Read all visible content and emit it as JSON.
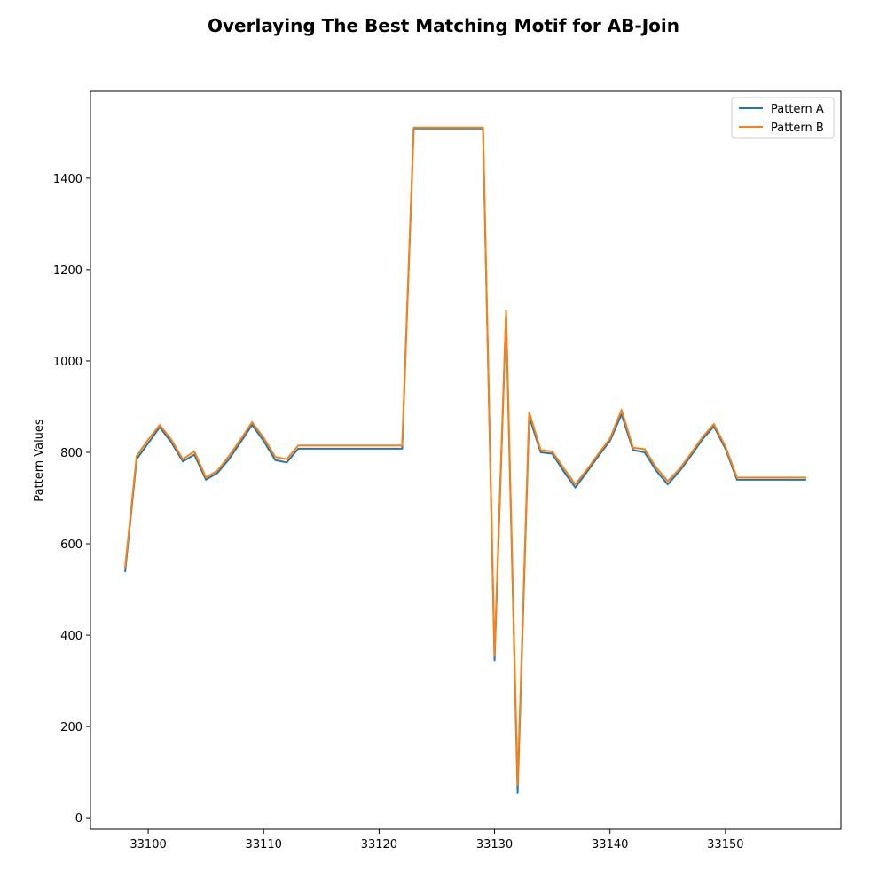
{
  "chart_data": {
    "type": "line",
    "title": "Overlaying The Best Matching Motif for AB-Join",
    "xlabel": "",
    "ylabel": "Pattern Values",
    "xlim": [
      33095,
      33160
    ],
    "ylim": [
      -25,
      1590
    ],
    "xticks": [
      33100,
      33110,
      33120,
      33130,
      33140,
      33150
    ],
    "yticks": [
      0,
      200,
      400,
      600,
      800,
      1000,
      1200,
      1400
    ],
    "grid": false,
    "legend_position": "top-right",
    "x": [
      33098,
      33099,
      33100,
      33101,
      33102,
      33103,
      33104,
      33105,
      33106,
      33107,
      33108,
      33109,
      33110,
      33111,
      33112,
      33113,
      33114,
      33115,
      33116,
      33117,
      33118,
      33119,
      33120,
      33121,
      33122,
      33123,
      33124,
      33125,
      33126,
      33127,
      33128,
      33129,
      33130,
      33131,
      33132,
      33133,
      33134,
      33135,
      33136,
      33137,
      33138,
      33139,
      33140,
      33141,
      33142,
      33143,
      33144,
      33145,
      33146,
      33147,
      33148,
      33149,
      33150,
      33151,
      33152,
      33153,
      33154,
      33155,
      33156,
      33157
    ],
    "series": [
      {
        "name": "Pattern A",
        "color": "#1f77b4",
        "values": [
          538,
          785,
          820,
          855,
          822,
          780,
          795,
          740,
          755,
          785,
          822,
          860,
          825,
          783,
          778,
          808,
          808,
          808,
          808,
          808,
          808,
          808,
          808,
          808,
          808,
          1509,
          1509,
          1509,
          1509,
          1509,
          1509,
          1509,
          345,
          1105,
          55,
          878,
          800,
          797,
          758,
          723,
          757,
          792,
          825,
          883,
          805,
          800,
          760,
          730,
          758,
          792,
          828,
          857,
          808,
          740,
          740,
          740,
          740,
          740,
          740,
          740
        ]
      },
      {
        "name": "Pattern B",
        "color": "#ff7f0e",
        "values": [
          548,
          792,
          828,
          860,
          828,
          785,
          802,
          745,
          760,
          792,
          828,
          866,
          832,
          790,
          785,
          815,
          815,
          815,
          815,
          815,
          815,
          815,
          815,
          815,
          815,
          1511,
          1511,
          1511,
          1511,
          1511,
          1511,
          1511,
          355,
          1110,
          72,
          888,
          805,
          802,
          765,
          730,
          762,
          797,
          830,
          893,
          810,
          807,
          767,
          737,
          763,
          797,
          833,
          862,
          813,
          745,
          745,
          745,
          745,
          745,
          745,
          745
        ]
      }
    ]
  }
}
